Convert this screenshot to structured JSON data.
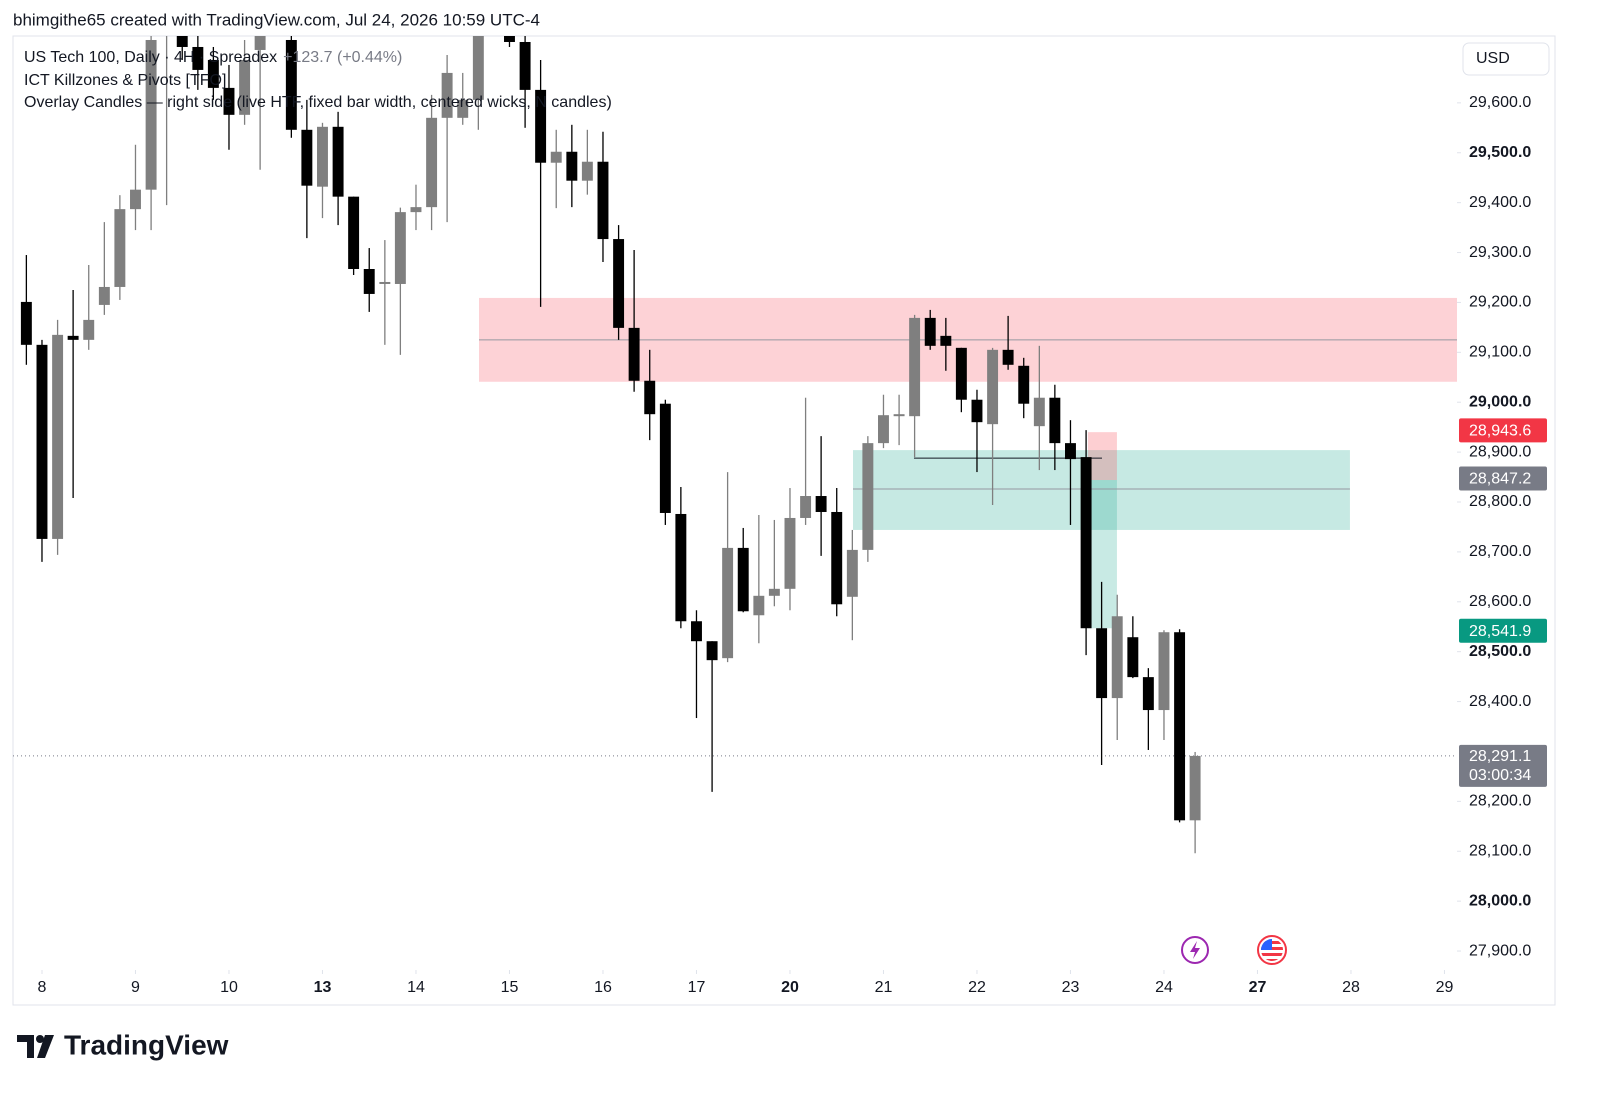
{
  "header": {
    "attribution": "bhimgithe65 created with TradingView.com, Jul 24, 2026 10:59 UTC-4"
  },
  "brand": "TradingView",
  "chart_data": {
    "type": "candlestick",
    "title": "US Tech 100, Daily · 4H · Spreadex",
    "change": "+123.7 (+0.44%)",
    "indicators": [
      "ICT Killzones & Pivots [TFO]",
      "Overlay Candles — right side (live HTF, fixed bar width, centered wicks, N candles)"
    ],
    "currency": "USD",
    "up_color": "#7f7f7f",
    "down_color": "#000000",
    "x": [
      -0.167,
      0,
      0.167,
      0.333,
      0.5,
      0.667,
      0.833,
      1,
      1.167,
      1.333,
      1.5,
      1.667,
      1.833,
      2,
      2.167,
      2.333,
      2.5,
      2.667,
      2.833,
      3,
      3.167,
      3.333,
      3.5,
      3.667,
      3.833,
      4,
      4.167,
      4.333,
      4.5,
      4.667,
      4.833,
      5,
      5.167,
      5.333,
      5.5,
      5.667,
      5.833,
      6,
      6.167,
      6.333,
      6.5,
      6.667,
      6.833,
      7,
      7.167,
      7.333,
      7.5,
      7.667,
      7.833,
      8,
      8.167,
      8.333,
      8.5,
      8.667,
      8.833,
      9,
      9.167,
      9.333,
      9.5,
      9.667,
      9.833,
      10,
      10.167,
      10.333,
      10.5,
      10.667,
      10.833,
      11,
      11.167,
      11.333,
      11.5,
      11.667,
      11.833,
      12,
      12.167,
      12.333
    ],
    "open": [
      29201,
      29115,
      28726,
      29133,
      29125,
      29195,
      29231,
      29387,
      29426,
      29760,
      29780,
      29712,
      29686,
      29630,
      29576,
      29706,
      29760,
      29726,
      29546,
      29432,
      29552,
      29412,
      29267,
      29237,
      29237,
      29381,
      29391,
      29570,
      29570,
      29606,
      29760,
      29760,
      29722,
      29626,
      29480,
      29502,
      29444,
      29482,
      29327,
      29149,
      29043,
      28997,
      28776,
      28561,
      28521,
      28487,
      28708,
      28573,
      28612,
      28626,
      28768,
      28812,
      28780,
      28610,
      28704,
      28918,
      28972,
      28972,
      29169,
      29133,
      29109,
      29005,
      28956,
      29105,
      29073,
      28952,
      29009,
      28918,
      28890,
      28547,
      28407,
      28529,
      28449,
      28383,
      28539,
      28162
    ],
    "high": [
      29295,
      29125,
      29165,
      29225,
      29275,
      29361,
      29415,
      29516,
      29760,
      29860,
      29800,
      29740,
      29712,
      29676,
      29726,
      29760,
      29820,
      29760,
      29606,
      29560,
      29582,
      29412,
      29309,
      29325,
      29390,
      29436,
      29616,
      29696,
      29660,
      29760,
      29790,
      29780,
      29740,
      29686,
      29546,
      29556,
      29546,
      29542,
      29355,
      29305,
      29105,
      29005,
      28830,
      28583,
      28521,
      28860,
      28748,
      28774,
      28764,
      28828,
      29009,
      28932,
      28828,
      28744,
      28932,
      29015,
      29015,
      29175,
      29185,
      29169,
      29109,
      29025,
      29109,
      29173,
      29089,
      29113,
      29035,
      28964,
      28944,
      28640,
      28614,
      28571,
      28467,
      28543,
      28545,
      28299
    ],
    "low": [
      29075,
      28680,
      28694,
      28808,
      29105,
      29175,
      29205,
      29345,
      29345,
      29395,
      29686,
      29626,
      29606,
      29506,
      29556,
      29466,
      29740,
      29530,
      29329,
      29369,
      29355,
      29255,
      29181,
      29115,
      29095,
      29345,
      29345,
      29361,
      29556,
      29546,
      29740,
      29712,
      29550,
      29191,
      29389,
      29391,
      29416,
      29281,
      29125,
      29021,
      28924,
      28754,
      28547,
      28367,
      28219,
      28479,
      28579,
      28517,
      28591,
      28583,
      28754,
      28692,
      28571,
      28523,
      28680,
      28908,
      28914,
      28890,
      29105,
      29063,
      28980,
      28860,
      28794,
      29065,
      28968,
      28864,
      28864,
      28754,
      28493,
      28273,
      28323,
      28447,
      28303,
      28323,
      28158,
      28096
    ],
    "close": [
      29115,
      28726,
      29135,
      29125,
      29165,
      29231,
      29387,
      29426,
      29726,
      29820,
      29712,
      29666,
      29630,
      29576,
      29686,
      29740,
      29800,
      29546,
      29434,
      29552,
      29412,
      29267,
      29217,
      29241,
      29381,
      29391,
      29570,
      29660,
      29606,
      29740,
      29780,
      29722,
      29626,
      29480,
      29502,
      29444,
      29482,
      29327,
      29149,
      29043,
      28976,
      28778,
      28561,
      28521,
      28483,
      28708,
      28581,
      28612,
      28626,
      28768,
      28812,
      28780,
      28595,
      28704,
      28918,
      28974,
      28976,
      29169,
      29113,
      29113,
      29005,
      28960,
      29105,
      29075,
      28997,
      29009,
      28918,
      28886,
      28547,
      28407,
      28571,
      28449,
      28383,
      28539,
      28162,
      28291.1
    ],
    "xlim": [
      -0.31,
      15.134
    ],
    "xticks": [
      {
        "value": 0,
        "label": "8"
      },
      {
        "value": 1,
        "label": "9"
      },
      {
        "value": 2,
        "label": "10"
      },
      {
        "value": 3,
        "label": "13",
        "bold": true
      },
      {
        "value": 4,
        "label": "14"
      },
      {
        "value": 5,
        "label": "15"
      },
      {
        "value": 6,
        "label": "16"
      },
      {
        "value": 7,
        "label": "17"
      },
      {
        "value": 8,
        "label": "20",
        "bold": true
      },
      {
        "value": 9,
        "label": "21"
      },
      {
        "value": 10,
        "label": "22"
      },
      {
        "value": 11,
        "label": "23"
      },
      {
        "value": 12,
        "label": "24"
      },
      {
        "value": 13,
        "label": "27",
        "bold": true
      },
      {
        "value": 14,
        "label": "28"
      },
      {
        "value": 15,
        "label": "29"
      }
    ],
    "ylim": [
      27862,
      29734
    ],
    "yticks": [
      {
        "value": 27900,
        "label": "27,900.0"
      },
      {
        "value": 28000,
        "label": "28,000.0",
        "bold": true
      },
      {
        "value": 28100,
        "label": "28,100.0"
      },
      {
        "value": 28200,
        "label": "28,200.0"
      },
      {
        "value": 28400,
        "label": "28,400.0"
      },
      {
        "value": 28500,
        "label": "28,500.0",
        "bold": true
      },
      {
        "value": 28600,
        "label": "28,600.0"
      },
      {
        "value": 28700,
        "label": "28,700.0"
      },
      {
        "value": 28800,
        "label": "28,800.0"
      },
      {
        "value": 28900,
        "label": "28,900.0"
      },
      {
        "value": 29000,
        "label": "29,000.0",
        "bold": true
      },
      {
        "value": 29100,
        "label": "29,100.0"
      },
      {
        "value": 29200,
        "label": "29,200.0"
      },
      {
        "value": 29300,
        "label": "29,300.0"
      },
      {
        "value": 29400,
        "label": "29,400.0"
      },
      {
        "value": 29500,
        "label": "29,500.0",
        "bold": true
      },
      {
        "value": 29600,
        "label": "29,600.0"
      }
    ],
    "zones": [
      {
        "x0": 4.674,
        "x1": 15.134,
        "y0": 29041,
        "y1": 29209,
        "color": "rgba(247,82,95,0.26)"
      },
      {
        "x0": 8.674,
        "x1": 13.989,
        "y0": 28744,
        "y1": 28904,
        "color": "rgba(34,171,148,0.26)"
      },
      {
        "x0": 11.187,
        "x1": 11.497,
        "y0": 28844,
        "y1": 28940,
        "color": "rgba(247,82,95,0.28)"
      },
      {
        "x0": 11.187,
        "x1": 11.497,
        "y0": 28547,
        "y1": 28844,
        "color": "rgba(34,171,148,0.25)"
      }
    ],
    "lines": [
      {
        "x0": 4.674,
        "x1": 15.134,
        "y": 29125,
        "color": "#9598a1"
      },
      {
        "x0": 8.674,
        "x1": 13.989,
        "y": 28826,
        "color": "#9598a1"
      },
      {
        "x0": 9.326,
        "x1": 11.337,
        "y": 28888,
        "color": "#131722"
      }
    ],
    "price_labels": [
      {
        "value": 28943.6,
        "label": "28,943.6",
        "color": "#f23645"
      },
      {
        "value": 28847.2,
        "label": "28,847.2",
        "color": "#787b86"
      },
      {
        "value": 28541.9,
        "label": "28,541.9",
        "color": "#089981"
      }
    ],
    "last_price": {
      "value": 28291.1,
      "label": "28,291.1",
      "countdown": "03:00:34",
      "color": "#787b86"
    }
  }
}
